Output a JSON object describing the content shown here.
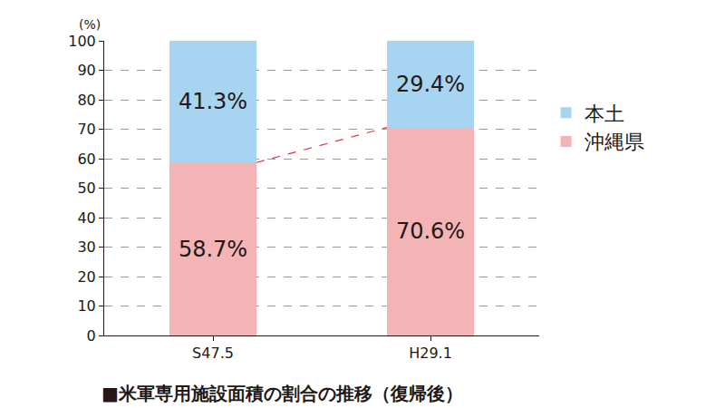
{
  "chart_data": {
    "type": "bar",
    "title": "■米軍専用施設面積の割合の推移（復帰後）",
    "ylabel": "(%)",
    "categories": [
      "S47.5",
      "H29.1"
    ],
    "series": [
      {
        "name": "沖縄県",
        "color": "#f4b3b5",
        "values": [
          58.7,
          70.6
        ],
        "value_labels": [
          "58.7%",
          "70.6%"
        ]
      },
      {
        "name": "本土",
        "color": "#a7d4f0",
        "values": [
          41.3,
          29.4
        ],
        "value_labels": [
          "41.3%",
          "29.4%"
        ]
      }
    ],
    "stacked": true,
    "data_labels": true,
    "ylim": [
      0,
      100
    ],
    "yticks": [
      0,
      10,
      20,
      30,
      40,
      50,
      60,
      70,
      80,
      90,
      100
    ],
    "grid": true,
    "legend": "right"
  }
}
